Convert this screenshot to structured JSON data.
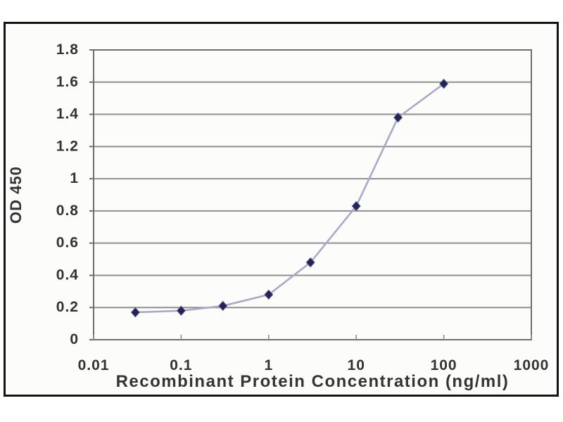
{
  "chart_data": {
    "type": "line",
    "title": "",
    "xlabel": "Recombinant Protein Concentration (ng/ml)",
    "ylabel": "OD 450",
    "x_scale": "log",
    "xlim": [
      0.01,
      1000
    ],
    "ylim": [
      0,
      1.8
    ],
    "x_ticks": [
      0.01,
      0.1,
      1,
      10,
      100,
      1000
    ],
    "x_tick_labels": [
      "0.01",
      "0.1",
      "1",
      "10",
      "100",
      "1000"
    ],
    "y_ticks": [
      0,
      0.2,
      0.4,
      0.6,
      0.8,
      1,
      1.2,
      1.4,
      1.6,
      1.8
    ],
    "y_tick_labels": [
      "0",
      "0.2",
      "0.4",
      "0.6",
      "0.8",
      "1",
      "1.2",
      "1.4",
      "1.6",
      "1.8"
    ],
    "grid": "horizontal",
    "legend": "none",
    "series": [
      {
        "x": [
          0.03,
          0.1,
          0.3,
          1,
          3,
          10,
          30,
          100
        ],
        "y": [
          0.17,
          0.18,
          0.21,
          0.28,
          0.48,
          0.83,
          1.38,
          1.59
        ],
        "marker": "diamond",
        "marker_color": "#23235a",
        "line_color": "#a9a9c8"
      }
    ],
    "colors": {
      "gridline": "#8f8f8f",
      "plot_border": "#6e6e6e",
      "frame_border": "#141414",
      "text": "#333333",
      "background": "#fcfcfb"
    }
  }
}
